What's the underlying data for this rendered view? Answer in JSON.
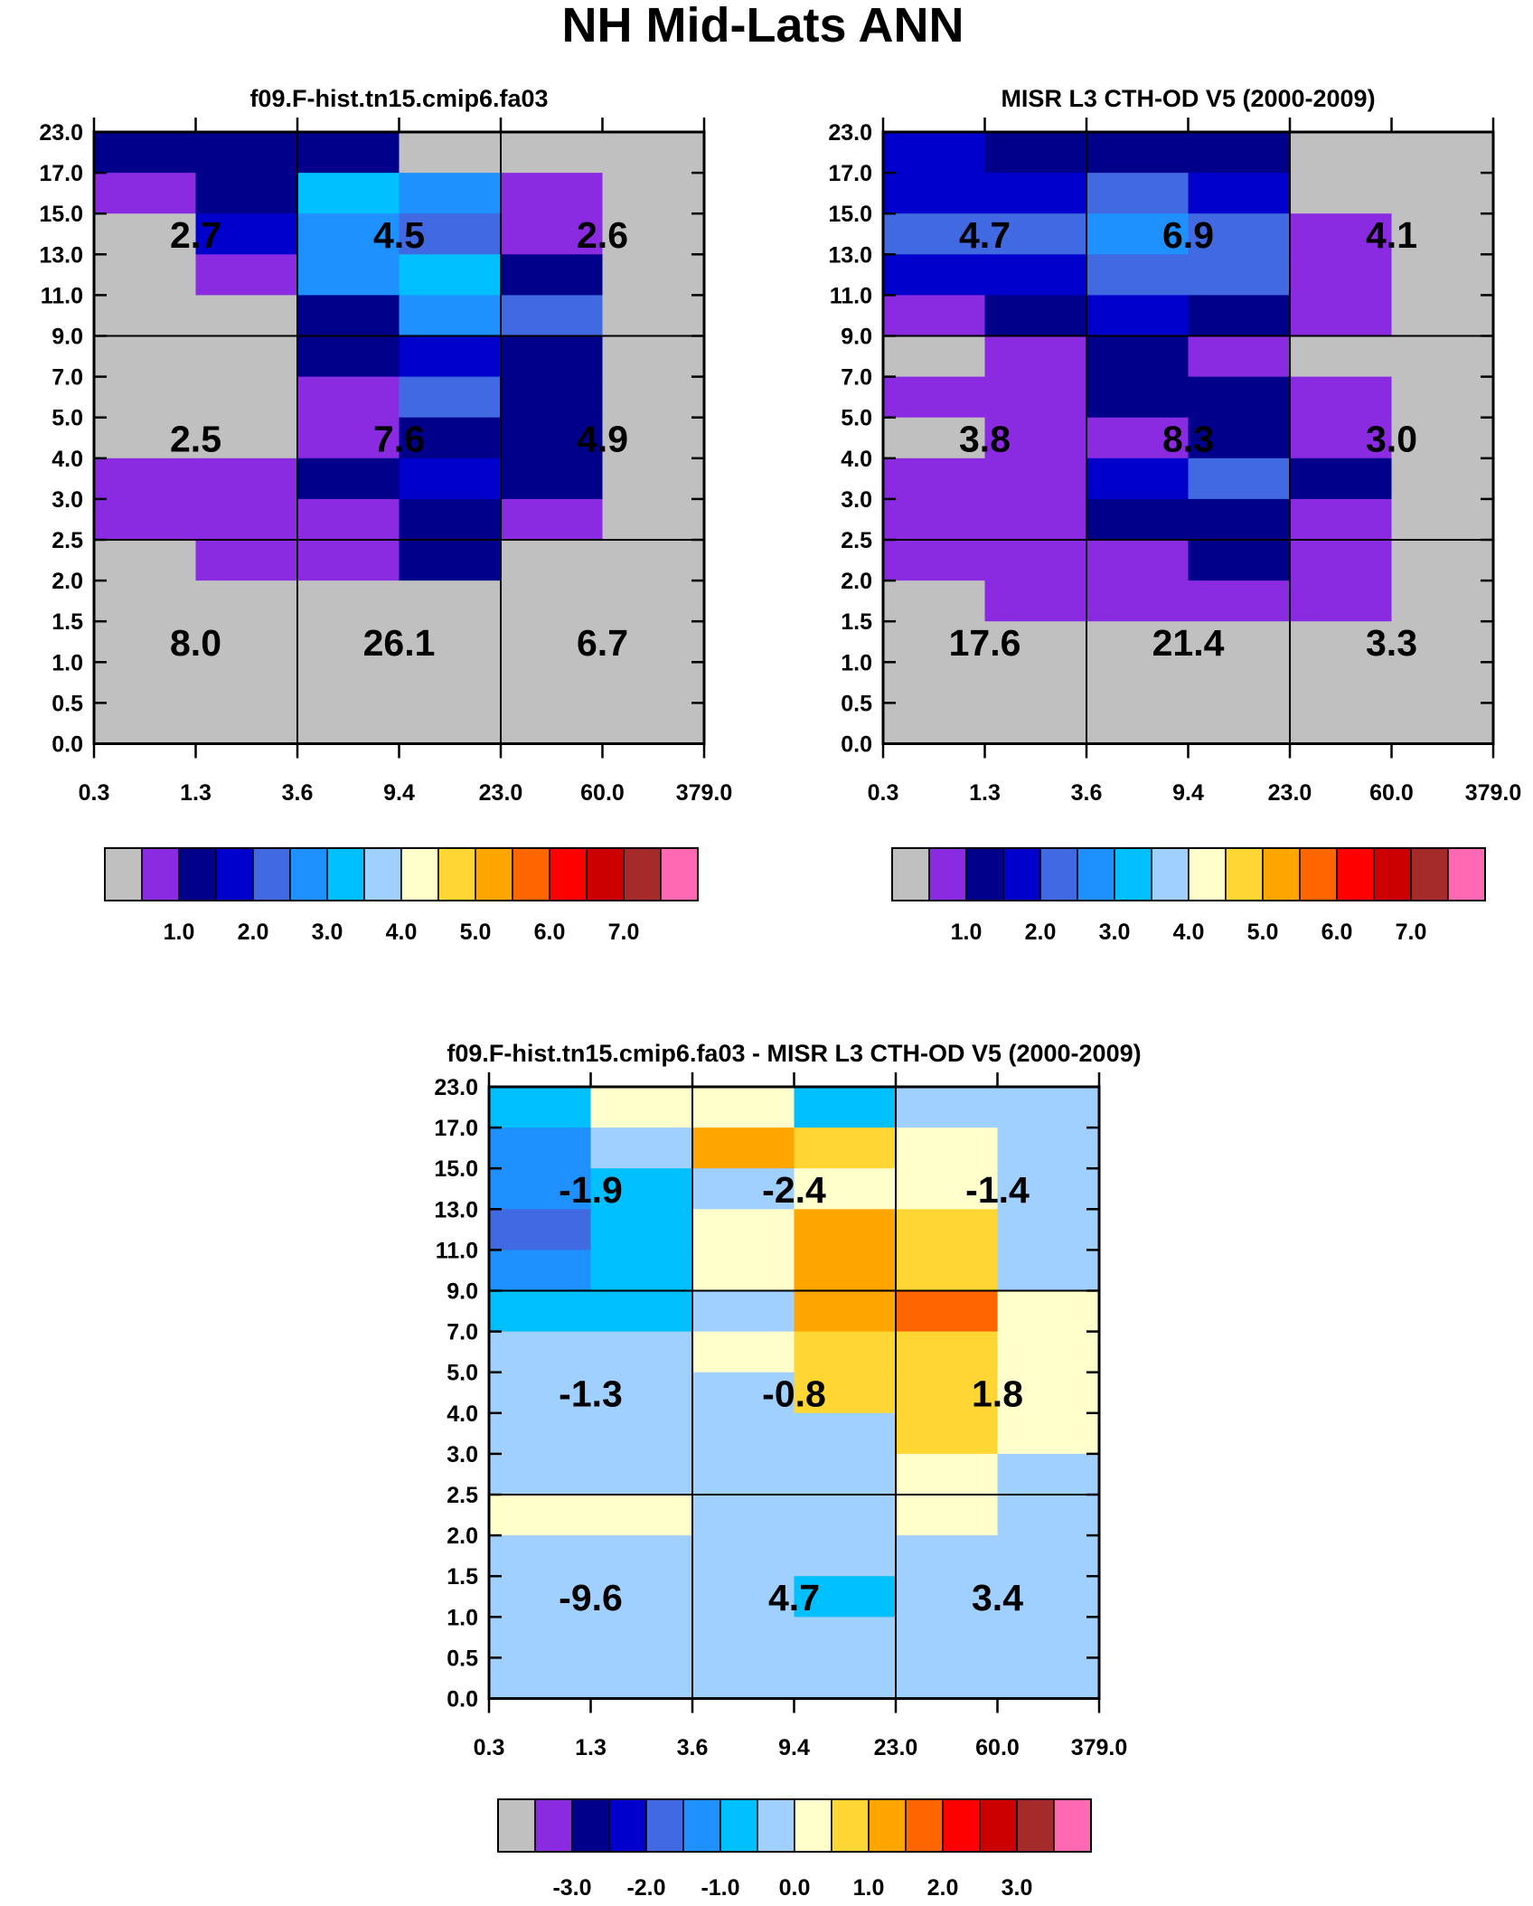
{
  "figure": {
    "title": "NH Mid-Lats ANN"
  },
  "axes": {
    "x_ticks": [
      "0.3",
      "1.3",
      "3.6",
      "9.4",
      "23.0",
      "60.0",
      "379.0"
    ],
    "y_ticks": [
      "0.0",
      "0.5",
      "1.0",
      "1.5",
      "2.0",
      "2.5",
      "3.0",
      "4.0",
      "5.0",
      "7.0",
      "9.0",
      "11.0",
      "13.0",
      "15.0",
      "17.0",
      "23.0"
    ]
  },
  "palette": [
    "#c0c0c0",
    "#8a2be2",
    "#00008b",
    "#0000cd",
    "#4169e1",
    "#1e90ff",
    "#00bfff",
    "#a0d0ff",
    "#ffffcc",
    "#ffd633",
    "#ffa500",
    "#ff6600",
    "#ff0000",
    "#cc0000",
    "#a52a2a",
    "#ff69b4"
  ],
  "chart_data": [
    {
      "type": "heatmap",
      "title": "f09.F-hist.tn15.cmip6.fa03",
      "xlabel": "",
      "ylabel": "",
      "colorbar_labels": [
        "1.0",
        "2.0",
        "3.0",
        "4.0",
        "5.0",
        "6.0",
        "7.0"
      ],
      "cell_color_index": [
        [
          2,
          2,
          2,
          0,
          0,
          0
        ],
        [
          1,
          2,
          6,
          5,
          1,
          0
        ],
        [
          0,
          3,
          5,
          4,
          1,
          0
        ],
        [
          0,
          1,
          5,
          6,
          2,
          0
        ],
        [
          0,
          0,
          2,
          5,
          4,
          0
        ],
        [
          0,
          0,
          2,
          3,
          2,
          0
        ],
        [
          0,
          0,
          1,
          4,
          2,
          0
        ],
        [
          0,
          0,
          1,
          2,
          2,
          0
        ],
        [
          1,
          1,
          2,
          3,
          2,
          0
        ],
        [
          1,
          1,
          1,
          2,
          1,
          0
        ],
        [
          0,
          1,
          1,
          2,
          0,
          0
        ],
        [
          0,
          0,
          0,
          0,
          0,
          0
        ],
        [
          0,
          0,
          0,
          0,
          0,
          0
        ],
        [
          0,
          0,
          0,
          0,
          0,
          0
        ],
        [
          0,
          0,
          0,
          0,
          0,
          0
        ]
      ],
      "group_values": [
        [
          {
            "label": "8.0",
            "value": 8.0
          },
          {
            "label": "26.1",
            "value": 26.1
          },
          {
            "label": "6.7",
            "value": 6.7
          }
        ],
        [
          {
            "label": "2.5",
            "value": 2.5
          },
          {
            "label": "7.6",
            "value": 7.6
          },
          {
            "label": "4.9",
            "value": 4.9
          }
        ],
        [
          {
            "label": "2.7",
            "value": 2.7
          },
          {
            "label": "4.5",
            "value": 4.5
          },
          {
            "label": "2.6",
            "value": 2.6
          }
        ]
      ]
    },
    {
      "type": "heatmap",
      "title": "MISR L3 CTH-OD V5 (2000-2009)",
      "xlabel": "",
      "ylabel": "",
      "colorbar_labels": [
        "1.0",
        "2.0",
        "3.0",
        "4.0",
        "5.0",
        "6.0",
        "7.0"
      ],
      "cell_color_index": [
        [
          3,
          2,
          2,
          2,
          0,
          0
        ],
        [
          3,
          3,
          4,
          3,
          0,
          0
        ],
        [
          4,
          4,
          5,
          4,
          1,
          0
        ],
        [
          3,
          3,
          4,
          4,
          1,
          0
        ],
        [
          1,
          2,
          3,
          2,
          1,
          0
        ],
        [
          0,
          1,
          2,
          1,
          0,
          0
        ],
        [
          1,
          1,
          2,
          2,
          1,
          0
        ],
        [
          0,
          1,
          1,
          2,
          1,
          0
        ],
        [
          1,
          1,
          3,
          4,
          2,
          0
        ],
        [
          1,
          1,
          2,
          2,
          1,
          0
        ],
        [
          1,
          1,
          1,
          2,
          1,
          0
        ],
        [
          0,
          1,
          1,
          1,
          1,
          0
        ],
        [
          0,
          0,
          0,
          0,
          0,
          0
        ],
        [
          0,
          0,
          0,
          0,
          0,
          0
        ],
        [
          0,
          0,
          0,
          0,
          0,
          0
        ]
      ],
      "group_values": [
        [
          {
            "label": "17.6",
            "value": 17.6
          },
          {
            "label": "21.4",
            "value": 21.4
          },
          {
            "label": "3.3",
            "value": 3.3
          }
        ],
        [
          {
            "label": "3.8",
            "value": 3.8
          },
          {
            "label": "8.3",
            "value": 8.3
          },
          {
            "label": "3.0",
            "value": 3.0
          }
        ],
        [
          {
            "label": "4.7",
            "value": 4.7
          },
          {
            "label": "6.9",
            "value": 6.9
          },
          {
            "label": "4.1",
            "value": 4.1
          }
        ]
      ]
    },
    {
      "type": "heatmap",
      "title": "f09.F-hist.tn15.cmip6.fa03 - MISR L3 CTH-OD V5 (2000-2009)",
      "xlabel": "",
      "ylabel": "",
      "colorbar_labels": [
        "-3.0",
        "-2.0",
        "-1.0",
        "0.0",
        "1.0",
        "2.0",
        "3.0"
      ],
      "cell_color_index": [
        [
          6,
          8,
          8,
          6,
          7,
          7
        ],
        [
          5,
          7,
          10,
          9,
          8,
          7
        ],
        [
          5,
          6,
          7,
          8,
          8,
          7
        ],
        [
          4,
          6,
          8,
          10,
          9,
          7
        ],
        [
          5,
          6,
          8,
          10,
          9,
          7
        ],
        [
          6,
          6,
          7,
          10,
          11,
          8
        ],
        [
          7,
          7,
          8,
          9,
          9,
          8
        ],
        [
          7,
          7,
          7,
          9,
          9,
          8
        ],
        [
          7,
          7,
          7,
          7,
          9,
          8
        ],
        [
          7,
          7,
          7,
          7,
          8,
          7
        ],
        [
          8,
          8,
          7,
          7,
          8,
          7
        ],
        [
          7,
          7,
          7,
          7,
          7,
          7
        ],
        [
          7,
          7,
          7,
          6,
          7,
          7
        ],
        [
          7,
          7,
          7,
          7,
          7,
          7
        ],
        [
          7,
          7,
          7,
          7,
          7,
          7
        ]
      ],
      "group_values": [
        [
          {
            "label": "-9.6",
            "value": -9.6
          },
          {
            "label": "4.7",
            "value": 4.7
          },
          {
            "label": "3.4",
            "value": 3.4
          }
        ],
        [
          {
            "label": "-1.3",
            "value": -1.3
          },
          {
            "label": "-0.8",
            "value": -0.8
          },
          {
            "label": "1.8",
            "value": 1.8
          }
        ],
        [
          {
            "label": "-1.9",
            "value": -1.9
          },
          {
            "label": "-2.4",
            "value": -2.4
          },
          {
            "label": "-1.4",
            "value": -1.4
          }
        ]
      ]
    }
  ]
}
